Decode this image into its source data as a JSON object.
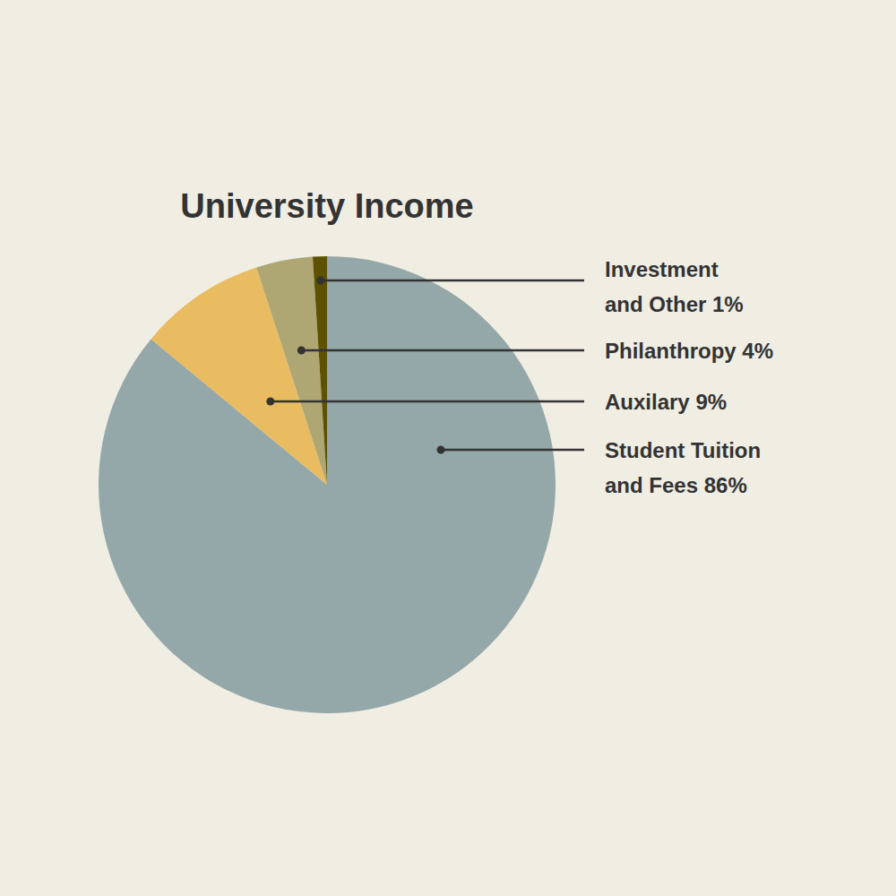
{
  "chart_data": {
    "type": "pie",
    "title": "University Income",
    "categories": [
      "Student Tuition and Fees",
      "Auxilary",
      "Philanthropy",
      "Investment and Other"
    ],
    "values": [
      86,
      9,
      4,
      1
    ],
    "value_labels": [
      "86%",
      "9%",
      "4%",
      "1%"
    ],
    "colors": [
      "#94a7a9",
      "#e9bc62",
      "#aea773",
      "#5c5200"
    ],
    "data_labels": true
  }
}
